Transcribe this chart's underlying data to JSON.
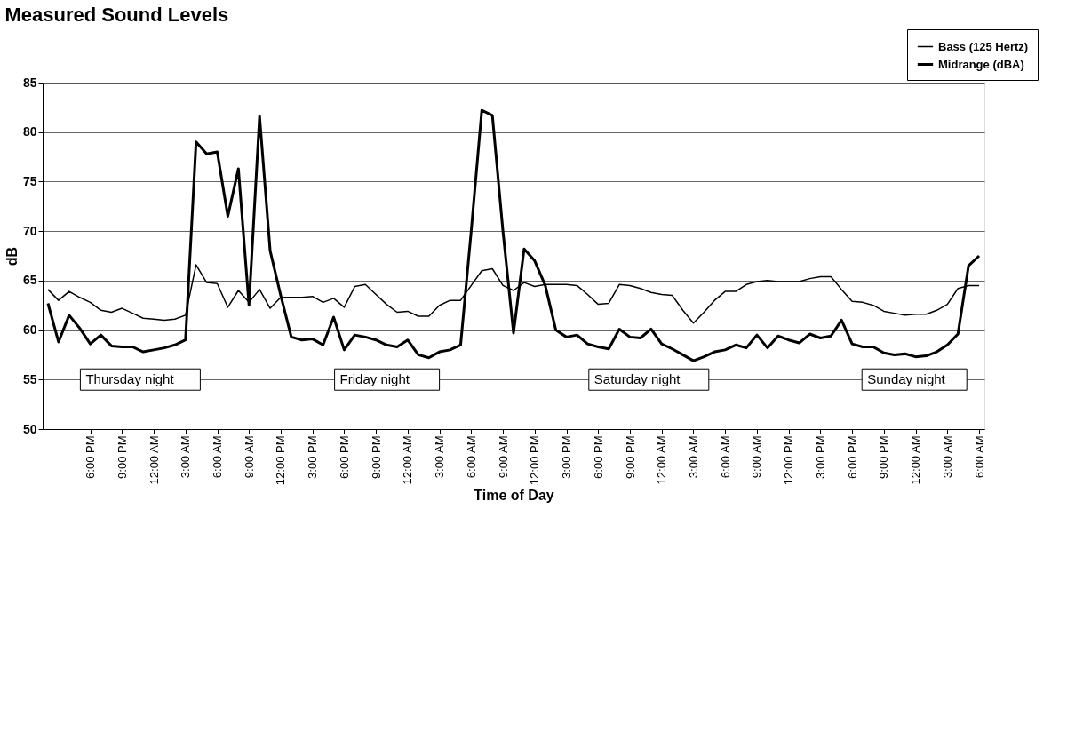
{
  "chart_data": {
    "type": "line",
    "title": "Measured Sound Levels",
    "xlabel": "Time of Day",
    "ylabel": "dB",
    "categories": [
      null,
      null,
      null,
      null,
      "6:00 PM",
      null,
      null,
      "9:00 PM",
      null,
      null,
      "12:00 AM",
      null,
      null,
      "3:00 AM",
      null,
      null,
      "6:00 AM",
      null,
      null,
      "9:00 AM",
      null,
      null,
      "12:00 PM",
      null,
      null,
      "3:00 PM",
      null,
      null,
      "6:00 PM",
      null,
      null,
      "9:00 PM",
      null,
      null,
      "12:00 AM",
      null,
      null,
      "3:00 AM",
      null,
      null,
      "6:00 AM",
      null,
      null,
      "9:00 AM",
      null,
      null,
      "12:00 PM",
      null,
      null,
      "3:00 PM",
      null,
      null,
      "6:00 PM",
      null,
      null,
      "9:00 PM",
      null,
      null,
      "12:00 AM",
      null,
      null,
      "3:00 AM",
      null,
      null,
      "6:00 AM",
      null,
      null,
      "9:00 AM",
      null,
      null,
      "12:00 PM",
      null,
      null,
      "3:00 PM",
      null,
      null,
      "6:00 PM",
      null,
      null,
      "9:00 PM",
      null,
      null,
      "12:00 AM",
      null,
      null,
      "3:00 AM",
      null,
      null,
      "6:00 AM"
    ],
    "series": [
      {
        "name": "Bass (125 Hertz)",
        "color": "#000000",
        "values": [
          64.1,
          63.0,
          63.9,
          63.3,
          62.8,
          62.0,
          61.8,
          62.2,
          61.7,
          61.2,
          61.1,
          61.0,
          61.1,
          61.5,
          66.6,
          64.8,
          64.7,
          62.3,
          64.0,
          62.8,
          64.1,
          62.2,
          63.3,
          63.3,
          63.3,
          63.4,
          62.8,
          63.2,
          62.3,
          64.4,
          64.6,
          63.6,
          62.6,
          61.8,
          61.9,
          61.4,
          61.4,
          62.5,
          63.0,
          63.0,
          64.5,
          66.0,
          66.2,
          64.5,
          64.0,
          64.8,
          64.4,
          64.6,
          64.6,
          64.6,
          64.5,
          63.6,
          62.6,
          62.7,
          64.6,
          64.5,
          64.2,
          63.8,
          63.6,
          63.5,
          62.0,
          60.7,
          61.8,
          63.0,
          63.9,
          63.9,
          64.6,
          64.9,
          65.0,
          64.9,
          64.9,
          64.9,
          65.2,
          65.4,
          65.4,
          64.1,
          62.9,
          62.8,
          62.5,
          61.9,
          61.7,
          61.5,
          61.6,
          61.6,
          62.0,
          62.6,
          64.2,
          64.5,
          64.5
        ]
      },
      {
        "name": "Midrange (dBA)",
        "color": "#000000",
        "values": [
          62.7,
          58.8,
          61.5,
          60.2,
          58.6,
          59.5,
          58.4,
          58.3,
          58.3,
          57.8,
          58.0,
          58.2,
          58.5,
          59.0,
          79.0,
          77.8,
          78.0,
          71.5,
          76.3,
          62.5,
          81.6,
          68.0,
          63.5,
          59.3,
          59.0,
          59.1,
          58.5,
          61.3,
          58.0,
          59.5,
          59.3,
          59.0,
          58.5,
          58.3,
          59.0,
          57.5,
          57.2,
          57.8,
          58.0,
          58.5,
          70.0,
          82.2,
          81.7,
          70.0,
          59.7,
          68.2,
          67.0,
          64.5,
          60.0,
          59.3,
          59.5,
          58.6,
          58.3,
          58.1,
          60.1,
          59.3,
          59.2,
          60.1,
          58.6,
          58.1,
          57.5,
          56.9,
          57.3,
          57.8,
          58.0,
          58.5,
          58.2,
          59.5,
          58.2,
          59.4,
          59.0,
          58.7,
          59.6,
          59.2,
          59.4,
          61.0,
          58.6,
          58.3,
          58.3,
          57.7,
          57.5,
          57.6,
          57.3,
          57.4,
          57.8,
          58.5,
          59.6,
          66.5,
          67.5
        ]
      }
    ],
    "ylim": [
      50,
      85
    ],
    "yticks": [
      50,
      55,
      60,
      65,
      70,
      75,
      80,
      85
    ],
    "grid": "y",
    "legend": "top right",
    "marker": "none",
    "line_style": "solid",
    "annotations": [
      "Thursday night",
      "Friday night",
      "Saturday night",
      "Sunday night"
    ]
  }
}
